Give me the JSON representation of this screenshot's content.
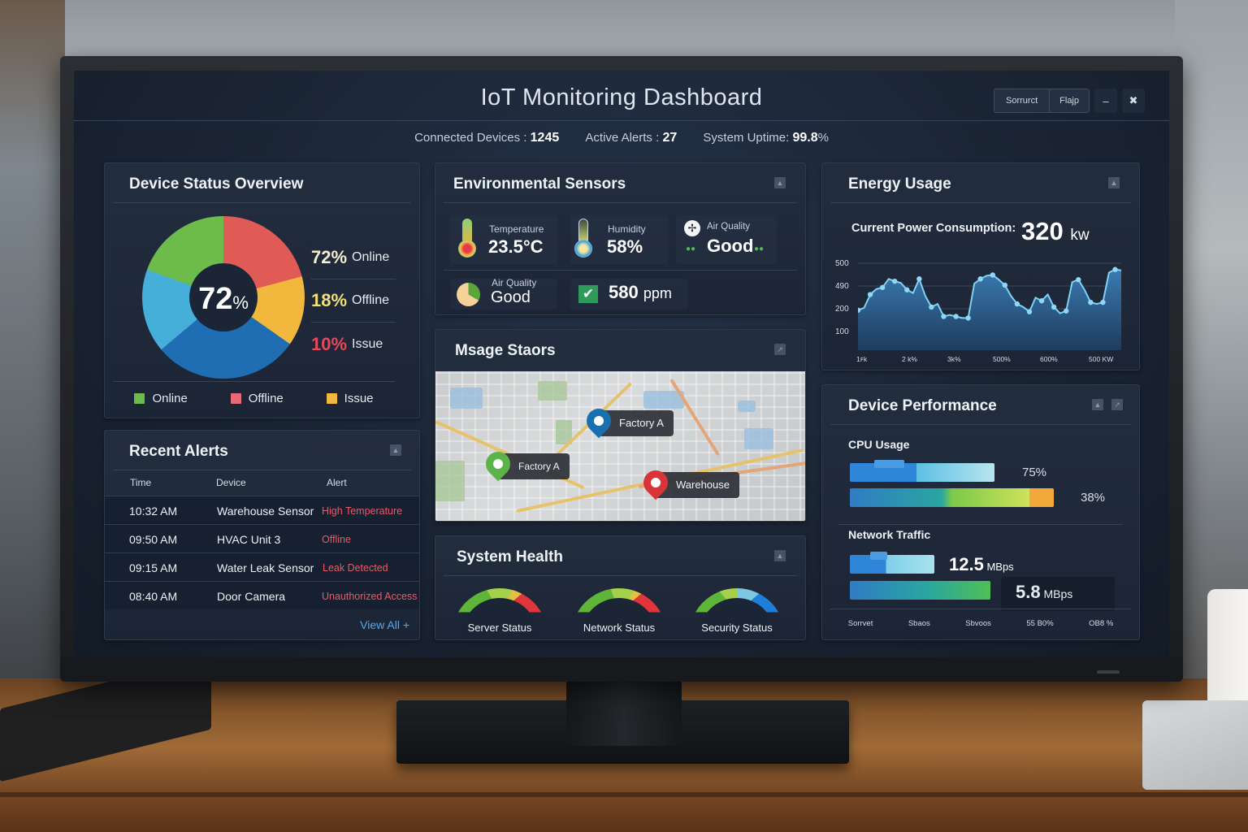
{
  "app": {
    "title": "IoT Monitoring Dashboard",
    "controls": {
      "btn1": "Sorrurct",
      "btn2": "Flajp",
      "minimize": "–",
      "close": "✖"
    }
  },
  "stats": {
    "connected_label": "Connected Devices :",
    "connected_value": "1245",
    "alerts_label": "Active Alerts :",
    "alerts_value": "27",
    "uptime_label": "System Uptime:",
    "uptime_value": "99.8",
    "uptime_unit": "%"
  },
  "device_status": {
    "title": "Device Status Overview",
    "center_value": "72",
    "center_unit": "%",
    "rows": [
      {
        "pct": "72%",
        "label": "Online",
        "color": "#f3efd0"
      },
      {
        "pct": "18%",
        "label": "Offline",
        "color": "#f0e07a"
      },
      {
        "pct": "10%",
        "label": "Issue",
        "color": "#e8495a"
      }
    ],
    "legend": [
      {
        "label": "Online",
        "color": "#6dbb4b"
      },
      {
        "label": "Offline",
        "color": "#e86a78"
      },
      {
        "label": "Issue",
        "color": "#f2b73d"
      }
    ]
  },
  "alerts": {
    "title": "Recent Alerts",
    "columns": [
      "Time",
      "Device",
      "Alert"
    ],
    "rows": [
      {
        "time": "10:32 AM",
        "device": "Warehouse Sensor",
        "alert": "High Temperature"
      },
      {
        "time": "09:50 AM",
        "device": "HVAC Unit 3",
        "alert": "Offline"
      },
      {
        "time": "09:15 AM",
        "device": "Water Leak Sensor",
        "alert": "Leak Detected"
      },
      {
        "time": "08:40 AM",
        "device": "Door Camera",
        "alert": "Unauthorized Access"
      }
    ],
    "view_all": "View All +"
  },
  "environment": {
    "title": "Environmental Sensors",
    "temperature": {
      "label": "Temperature",
      "value": "23.5°C"
    },
    "humidity": {
      "label": "Humidity",
      "value": "58%"
    },
    "air_quality": {
      "label": "Air Quality",
      "value": "Good"
    },
    "air_quality2": {
      "label": "Air Quality",
      "value": "Good"
    },
    "co2": {
      "value": "580",
      "unit": "ppm"
    }
  },
  "map": {
    "title": "Msage Staors",
    "pins": [
      {
        "label": "Factory A",
        "color": "#1a6fb0"
      },
      {
        "label": "Factory A",
        "color": "#5cb34a"
      },
      {
        "label": "Warehouse",
        "color": "#d8343a"
      }
    ]
  },
  "health": {
    "title": "System Health",
    "gauges": [
      {
        "label": "Server Status"
      },
      {
        "label": "Network Status"
      },
      {
        "label": "Security Status"
      }
    ]
  },
  "energy": {
    "title": "Energy Usage",
    "subtitle": "Current Power Consumption:",
    "value": "320",
    "unit": "kw"
  },
  "chart_data": {
    "type": "area",
    "title": "Energy Usage",
    "subtitle": "Current Power Consumption: 320 kw",
    "xlabel": "",
    "ylabel": "",
    "y_ticks": [
      "500",
      "490",
      "200",
      "100"
    ],
    "x_ticks": [
      "1ꜰk",
      "2 k%",
      "3k%",
      "500%",
      "600%",
      "500 KW"
    ],
    "ylim": [
      0,
      500
    ],
    "grid": true,
    "values": [
      200,
      215,
      300,
      335,
      345,
      400,
      385,
      375,
      330,
      310,
      400,
      290,
      220,
      240,
      160,
      170,
      160,
      150,
      150,
      370,
      400,
      420,
      425,
      395,
      360,
      290,
      240,
      220,
      190,
      280,
      260,
      300,
      220,
      180,
      195,
      380,
      395,
      330,
      250,
      240,
      250,
      440,
      460,
      455
    ]
  },
  "performance": {
    "title": "Device Performance",
    "cpu_label": "CPU Usage",
    "cpu_values": [
      "75%",
      "38%"
    ],
    "net_label": "Network Traffic",
    "net_values": [
      {
        "value": "12.5",
        "unit": "MBps"
      },
      {
        "value": "5.8",
        "unit": "MBps"
      }
    ],
    "footer": [
      "Sorrvet",
      "Sbaos",
      "Sbvoos",
      "55 B0%",
      "OB8 %"
    ]
  }
}
